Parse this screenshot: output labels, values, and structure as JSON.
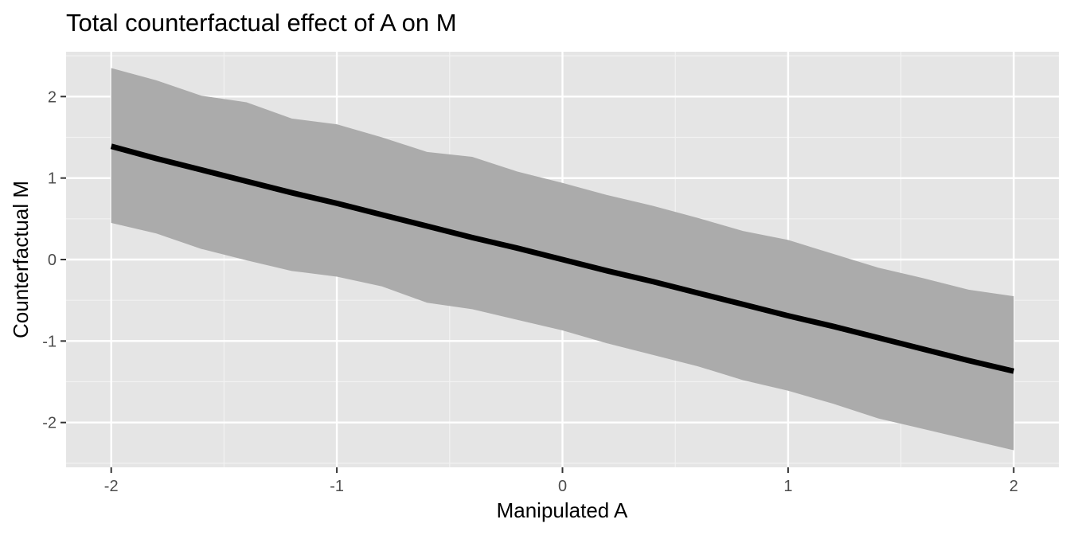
{
  "chart_data": {
    "type": "line",
    "title": "Total counterfactual effect of A on M",
    "xlabel": "Manipulated A",
    "ylabel": "Counterfactual M",
    "xlim": [
      -2.2,
      2.2
    ],
    "ylim": [
      -2.55,
      2.55
    ],
    "x_ticks": [
      -2,
      -1,
      0,
      1,
      2
    ],
    "x_tick_labels": [
      "-2",
      "-1",
      "0",
      "1",
      "2"
    ],
    "y_ticks": [
      -2,
      -1,
      0,
      1,
      2
    ],
    "y_tick_labels": [
      "-2",
      "-1",
      "0",
      "1",
      "2"
    ],
    "grid": true,
    "series": [
      {
        "kind": "line",
        "color": "#000000",
        "x": [
          -2.0,
          -1.8,
          -1.6,
          -1.4,
          -1.2,
          -1.0,
          -0.8,
          -0.6,
          -0.4,
          -0.2,
          0.0,
          0.2,
          0.4,
          0.6,
          0.8,
          1.0,
          1.2,
          1.4,
          1.6,
          1.8,
          2.0
        ],
        "y": [
          1.39,
          1.24,
          1.1,
          0.96,
          0.82,
          0.69,
          0.55,
          0.41,
          0.27,
          0.14,
          0.0,
          -0.14,
          -0.27,
          -0.41,
          -0.55,
          -0.69,
          -0.82,
          -0.96,
          -1.1,
          -1.24,
          -1.37
        ]
      },
      {
        "kind": "ribbon",
        "color": "#ababab",
        "x": [
          -2.0,
          -1.8,
          -1.6,
          -1.4,
          -1.2,
          -1.0,
          -0.8,
          -0.6,
          -0.4,
          -0.2,
          0.0,
          0.2,
          0.4,
          0.6,
          0.8,
          1.0,
          1.2,
          1.4,
          1.6,
          1.8,
          2.0
        ],
        "lower": [
          0.45,
          0.32,
          0.13,
          -0.01,
          -0.14,
          -0.21,
          -0.33,
          -0.53,
          -0.61,
          -0.74,
          -0.87,
          -1.03,
          -1.17,
          -1.31,
          -1.48,
          -1.61,
          -1.77,
          -1.95,
          -2.08,
          -2.21,
          -2.34
        ],
        "upper": [
          2.35,
          2.2,
          2.01,
          1.93,
          1.73,
          1.66,
          1.5,
          1.32,
          1.26,
          1.08,
          0.94,
          0.79,
          0.66,
          0.51,
          0.35,
          0.24,
          0.07,
          -0.1,
          -0.23,
          -0.37,
          -0.45
        ]
      }
    ]
  }
}
